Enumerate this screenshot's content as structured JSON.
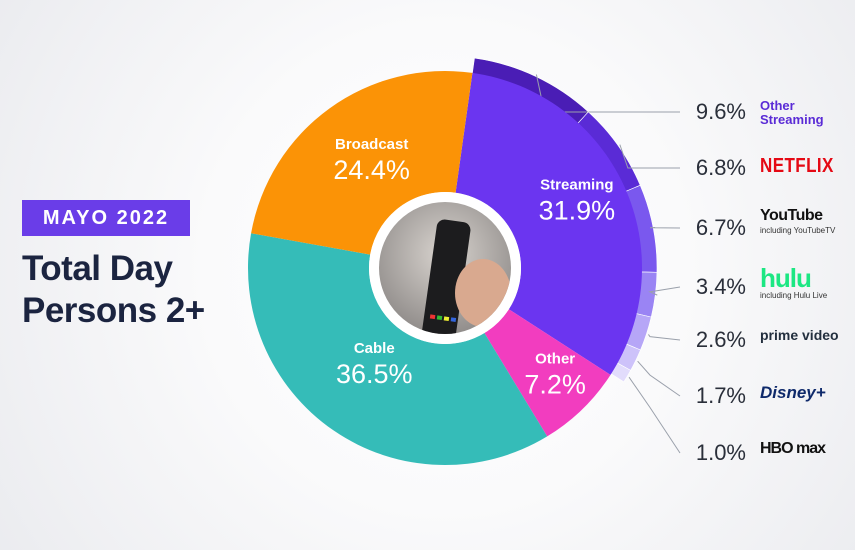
{
  "chart_data": {
    "type": "donut",
    "badge": "MAYO 2022",
    "title_lines": [
      "Total Day",
      "Persons 2+"
    ],
    "categories": [
      "Streaming",
      "Other",
      "Cable",
      "Broadcast"
    ],
    "values": [
      31.9,
      7.2,
      36.5,
      24.4
    ],
    "value_labels": [
      "31.9%",
      "7.2%",
      "36.5%",
      "24.4%"
    ],
    "colors": [
      "#6b35f0",
      "#f23dbf",
      "#35bcb8",
      "#fb9306"
    ],
    "breakdown": {
      "categories": [
        "Other Streaming",
        "NETFLIX",
        "YouTube",
        "hulu",
        "prime video",
        "Disney+",
        "HBO max"
      ],
      "notes": [
        null,
        null,
        "including YouTubeTV",
        "including Hulu Live",
        null,
        null,
        null
      ],
      "values": [
        9.6,
        6.8,
        6.7,
        3.4,
        2.6,
        1.7,
        1.0
      ],
      "value_labels": [
        "9.6%",
        "6.8%",
        "6.7%",
        "3.4%",
        "2.6%",
        "1.7%",
        "1.0%"
      ],
      "colors": [
        "#4a1db5",
        "#5a2bd6",
        "#7a58ee",
        "#9a84f4",
        "#b6a6f7",
        "#cdc2fa",
        "#e2dcfc"
      ]
    }
  }
}
